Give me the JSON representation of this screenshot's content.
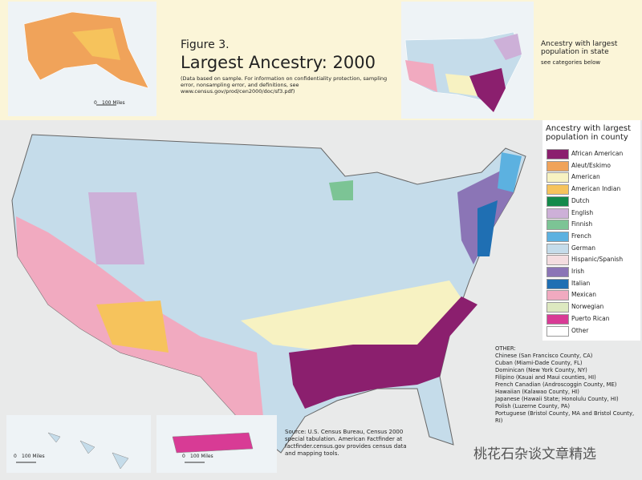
{
  "header": {
    "figure_label": "Figure 3.",
    "title": "Largest Ancestry: 2000",
    "note": "(Data based on sample. For information on confidentiality protection, sampling error, nonsampling error, and definitions, see www.census.gov/prod/cen2000/doc/sf3.pdf)"
  },
  "state_inset": {
    "title": "Ancestry with largest population in state",
    "subtitle": "see categories below"
  },
  "legend": {
    "title": "Ancestry with largest population in county",
    "items": [
      {
        "label": "African American",
        "color": "#8b1f6e"
      },
      {
        "label": "Aleut/Eskimo",
        "color": "#f0a35a"
      },
      {
        "label": "American",
        "color": "#f7f2c2"
      },
      {
        "label": "American Indian",
        "color": "#f6c35c"
      },
      {
        "label": "Dutch",
        "color": "#138a4a"
      },
      {
        "label": "English",
        "color": "#cdb0d8"
      },
      {
        "label": "Finnish",
        "color": "#7cc495"
      },
      {
        "label": "French",
        "color": "#5cb1e0"
      },
      {
        "label": "German",
        "color": "#c5dcea"
      },
      {
        "label": "Hispanic/Spanish",
        "color": "#f4dde0"
      },
      {
        "label": "Irish",
        "color": "#8b75b6"
      },
      {
        "label": "Italian",
        "color": "#1f6fb3"
      },
      {
        "label": "Mexican",
        "color": "#f1aac0"
      },
      {
        "label": "Norwegian",
        "color": "#dde9c0"
      },
      {
        "label": "Puerto Rican",
        "color": "#d83b95"
      },
      {
        "label": "Other",
        "color": "#ffffff"
      }
    ]
  },
  "other": {
    "heading": "OTHER:",
    "items": [
      "Chinese (San Francisco County, CA)",
      "Cuban (Miami-Dade County, FL)",
      "Dominican (New York County, NY)",
      "Filipino (Kauai and Maui counties, HI)",
      "French Canadian (Androscoggin County, ME)",
      "Hawaiian (Kalawao County, HI)",
      "Japanese (Hawaii State; Honolulu County, HI)",
      "Polish (Luzerne County, PA)",
      "Portuguese (Bristol County, MA and Bristol County, RI)"
    ]
  },
  "source": "Source: U.S. Census Bureau, Census 2000 special tabulation. American Factfinder at factfinder.census.gov provides census data and mapping tools.",
  "scale_bars": {
    "alaska": [
      "0",
      "100 Miles"
    ],
    "hawaii": [
      "0",
      "100 Miles"
    ],
    "puerto_rico": [
      "0",
      "100 Miles"
    ]
  },
  "watermark": "桃花石杂谈文章精选"
}
